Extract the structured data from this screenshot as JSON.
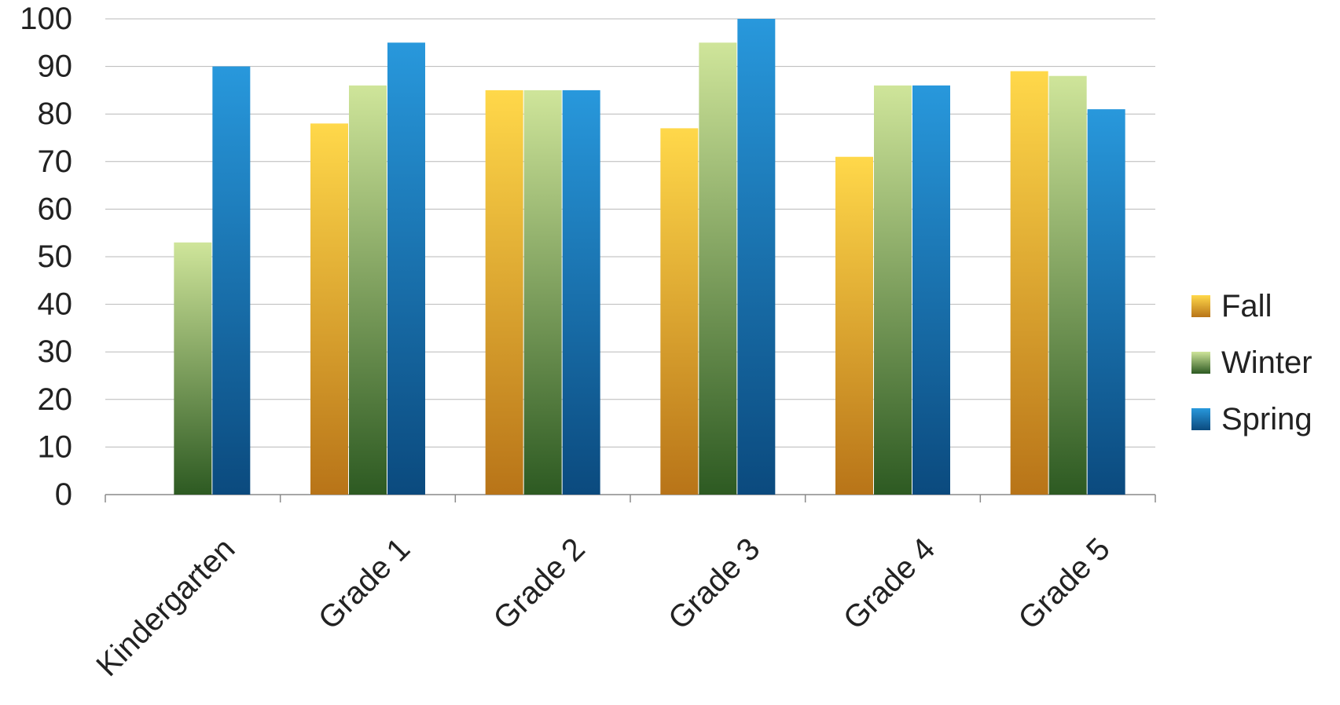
{
  "chart_data": {
    "type": "bar",
    "title": "",
    "xlabel": "",
    "ylabel": "",
    "categories": [
      "Kindergarten",
      "Grade 1",
      "Grade 2",
      "Grade 3",
      "Grade 4",
      "Grade 5"
    ],
    "series": [
      {
        "name": "Fall",
        "values": [
          null,
          78,
          85,
          77,
          71,
          89
        ],
        "color_light": "#ffd84a",
        "color_dark": "#b87418"
      },
      {
        "name": "Winter",
        "values": [
          53,
          86,
          85,
          95,
          86,
          88
        ],
        "color_light": "#cfe59a",
        "color_dark": "#2d5a22"
      },
      {
        "name": "Spring",
        "values": [
          90,
          95,
          85,
          100,
          86,
          81
        ],
        "color_light": "#2898dc",
        "color_dark": "#0b4a7e"
      }
    ],
    "ylim": [
      0,
      100
    ],
    "yticks": [
      0,
      10,
      20,
      30,
      40,
      50,
      60,
      70,
      80,
      90,
      100
    ],
    "grid": true,
    "legend_position": "right"
  }
}
